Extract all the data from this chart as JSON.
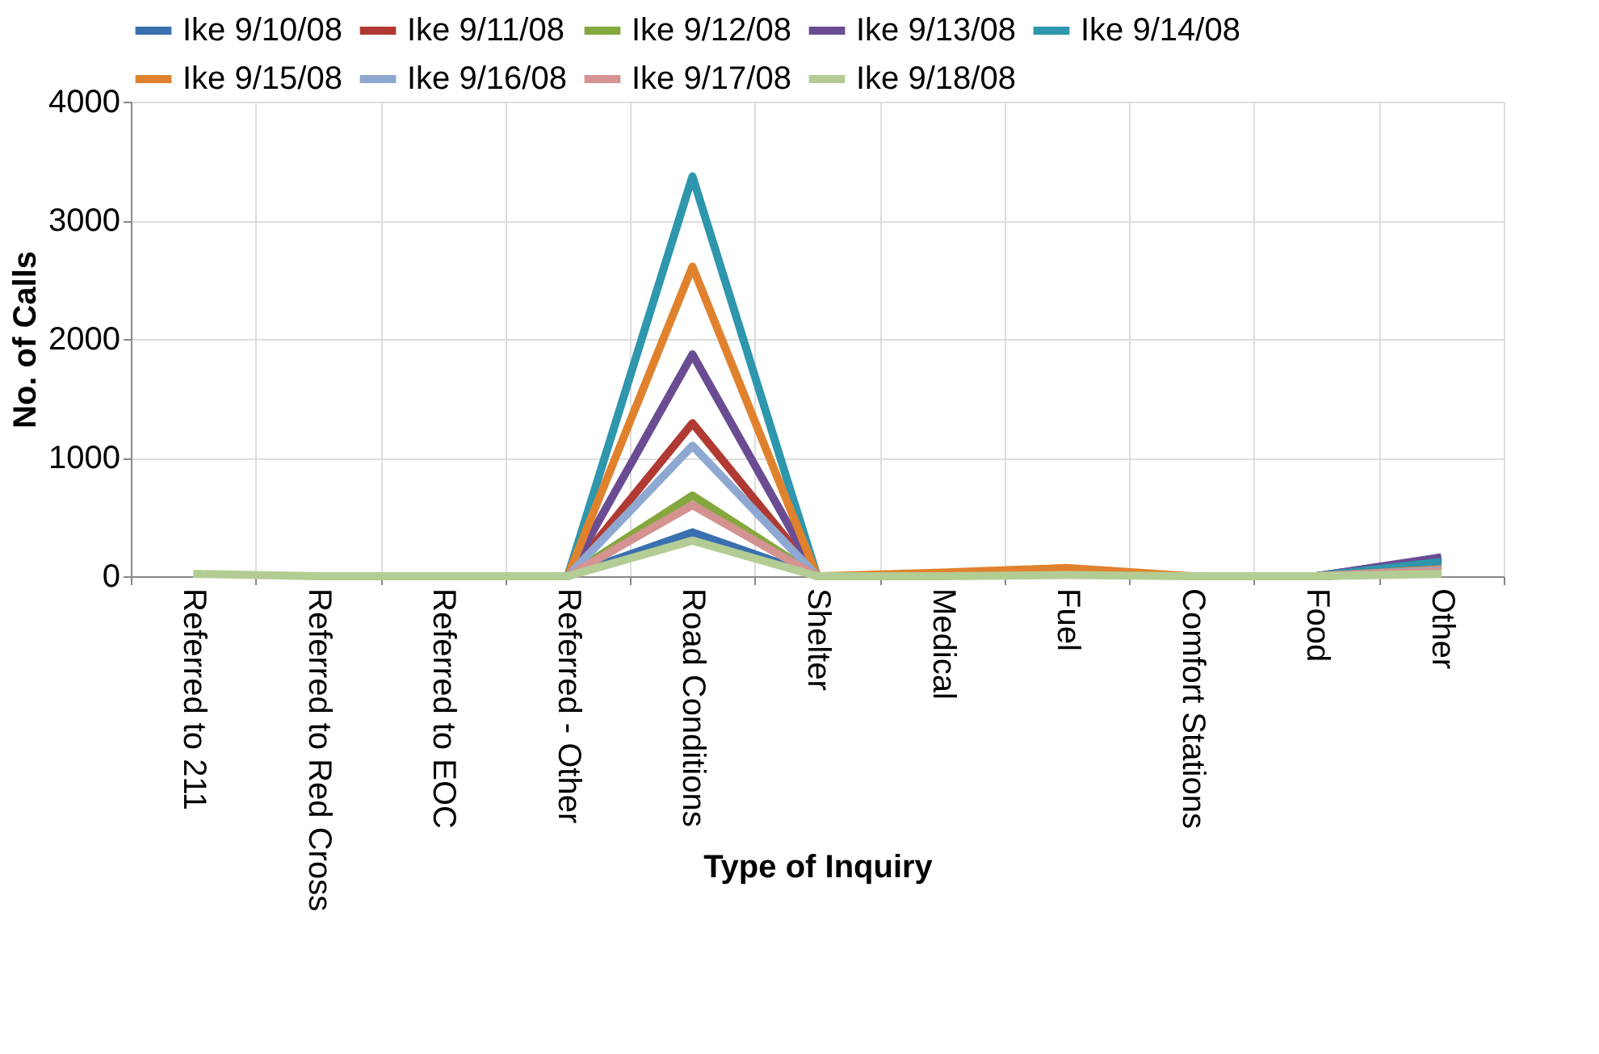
{
  "chart_data": {
    "type": "line",
    "xlabel": "Type of Inquiry",
    "ylabel": "No. of Calls",
    "categories": [
      "Referred to 211",
      "Referred to Red Cross",
      "Referred to EOC",
      "Referred - Other",
      "Road Conditions",
      "Shelter",
      "Medical",
      "Fuel",
      "Comfort Stations",
      "Food",
      "Other"
    ],
    "series": [
      {
        "name": "Ike 9/10/08",
        "color": "#3a6fb0",
        "values": [
          null,
          null,
          null,
          0,
          370,
          0,
          null,
          null,
          null,
          0,
          150
        ]
      },
      {
        "name": "Ike 9/11/08",
        "color": "#b03a33",
        "values": [
          null,
          null,
          null,
          0,
          1290,
          0,
          null,
          null,
          null,
          0,
          60
        ]
      },
      {
        "name": "Ike 9/12/08",
        "color": "#84a83e",
        "values": [
          null,
          null,
          null,
          0,
          680,
          0,
          null,
          null,
          null,
          0,
          40
        ]
      },
      {
        "name": "Ike 9/13/08",
        "color": "#6a4c93",
        "values": [
          null,
          null,
          null,
          0,
          1870,
          0,
          null,
          null,
          null,
          0,
          160
        ]
      },
      {
        "name": "Ike 9/14/08",
        "color": "#2e96ad",
        "values": [
          null,
          null,
          null,
          0,
          3370,
          0,
          null,
          null,
          null,
          0,
          120
        ]
      },
      {
        "name": "Ike 9/15/08",
        "color": "#e0822d",
        "values": [
          null,
          null,
          null,
          0,
          2610,
          0,
          30,
          70,
          0,
          0,
          60
        ]
      },
      {
        "name": "Ike 9/16/08",
        "color": "#8ea8d1",
        "values": [
          null,
          null,
          null,
          0,
          1100,
          0,
          null,
          null,
          null,
          0,
          50
        ]
      },
      {
        "name": "Ike 9/17/08",
        "color": "#d49290",
        "values": [
          null,
          null,
          null,
          0,
          600,
          0,
          null,
          null,
          null,
          0,
          40
        ]
      },
      {
        "name": "Ike 9/18/08",
        "color": "#b3cc94",
        "values": [
          20,
          0,
          0,
          0,
          300,
          0,
          0,
          10,
          0,
          0,
          20
        ]
      }
    ],
    "ylim": [
      0,
      4000
    ],
    "yticks": [
      0,
      1000,
      2000,
      3000,
      4000
    ],
    "grid": true,
    "legend": "top",
    "marker": "none",
    "line_style": "solid"
  }
}
